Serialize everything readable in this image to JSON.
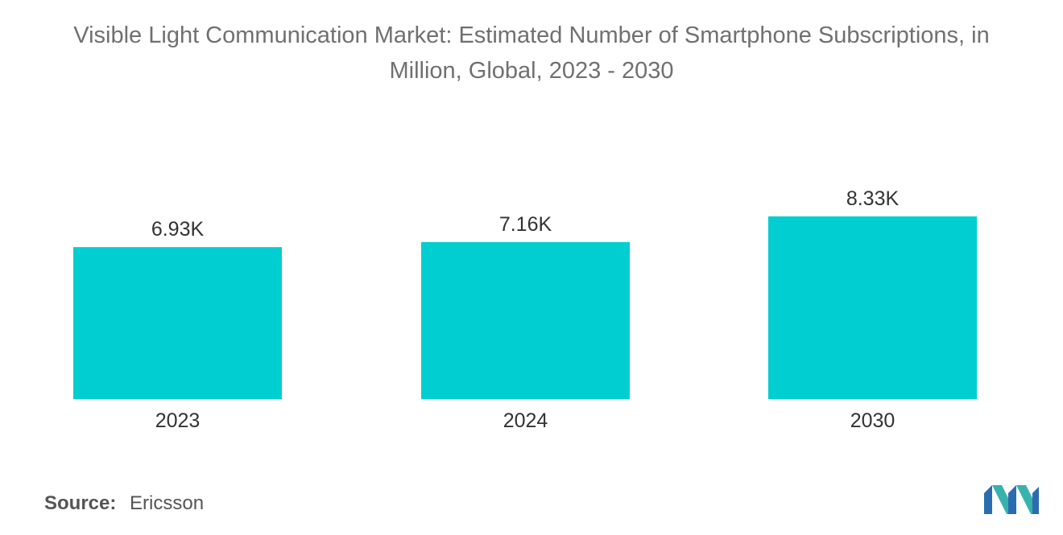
{
  "title_lines": [
    "Visible Light Communication Market: Estimated Number of Smartphone Subscriptions, in",
    "Million, Global, 2023 - 2030"
  ],
  "source": {
    "label": "Source:",
    "value": "Ericsson"
  },
  "colors": {
    "bar": "#00CED1",
    "text": "#333333",
    "title": "#707070"
  },
  "logo": {
    "name": "mordor-intelligence-logo"
  },
  "chart_data": {
    "type": "bar",
    "title": "Visible Light Communication Market: Estimated Number of Smartphone Subscriptions, in Million, Global, 2023 - 2030",
    "categories": [
      "2023",
      "2024",
      "2030"
    ],
    "values": [
      6.93,
      7.16,
      8.33
    ],
    "value_labels": [
      "6.93K",
      "7.16K",
      "8.33K"
    ],
    "xlabel": "",
    "ylabel": "",
    "ylim": [
      0,
      8.33
    ],
    "grid": false,
    "legend": "none"
  }
}
